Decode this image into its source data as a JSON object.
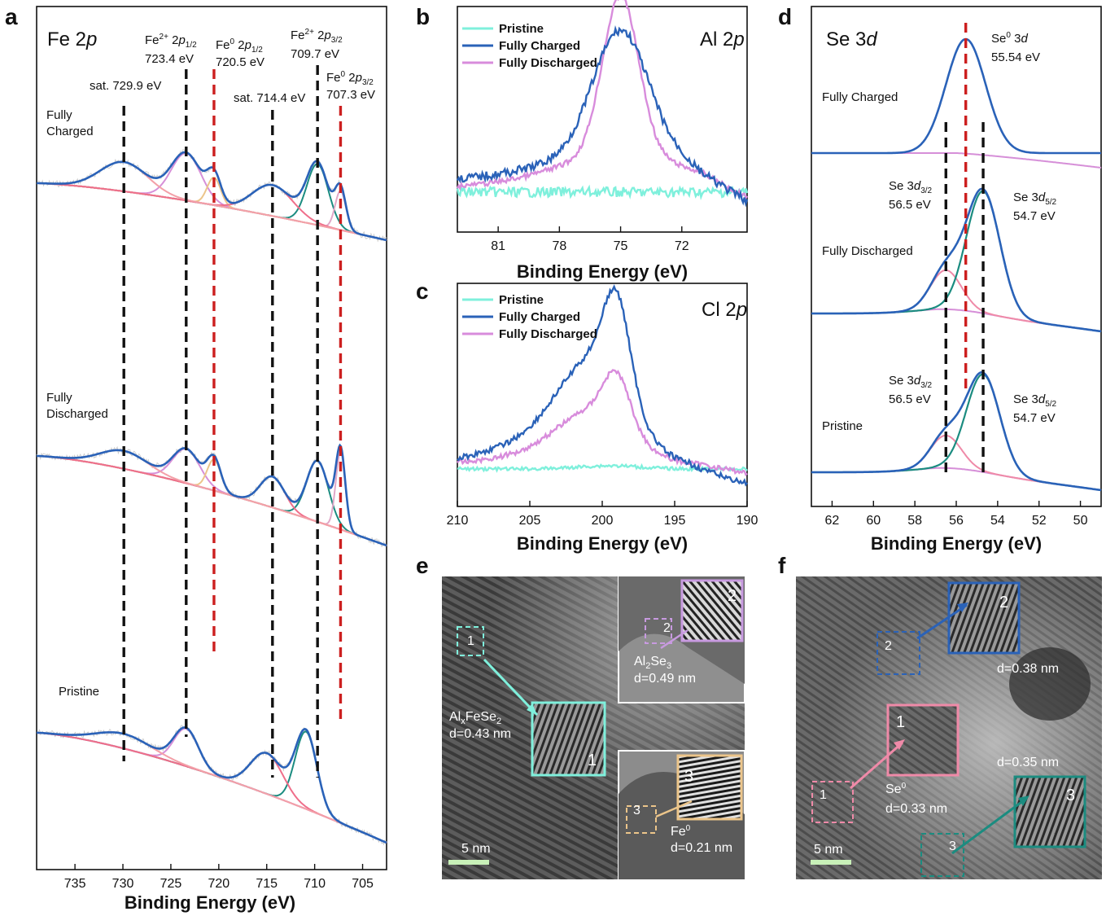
{
  "panel_labels": {
    "a": "a",
    "b": "b",
    "c": "c",
    "d": "d",
    "e": "e",
    "f": "f"
  },
  "colors": {
    "envelope": "#2a62b8",
    "fe2_32": "#1b8c80",
    "fe0": "#e0a8c8",
    "fe2_12": "#d68fd8",
    "sat": "#ef6e8a",
    "satb": "#f3a0a8",
    "fe0_12": "#ecc58a",
    "bg": "#e86a7a",
    "raw": "#c8c8c8",
    "red_dash": "#cc1f1f",
    "black_dash": "#111111",
    "pristine": "#7ff0dc",
    "charged": "#2a62b8",
    "discharged": "#d88cdc",
    "se_sum": "#2a62b8",
    "se52": "#1b8c80",
    "se32": "#ef8aa8",
    "se_bg": "#d68fd8",
    "tem_bg": "#7a7a7a",
    "box_cyan": "#7ff0dc",
    "box_purple": "#c89ae0",
    "box_orange": "#ecc58a",
    "box_blue": "#2a62b8",
    "box_pink": "#ef8aa8",
    "box_teal": "#1b8c80",
    "scalebar": "#c8f0b8"
  },
  "chart_data": [
    {
      "id": "a",
      "type": "line",
      "title": "Fe 2p",
      "xlabel": "Binding Energy (eV)",
      "xlim": [
        739,
        702.5
      ],
      "xticks": [
        735,
        730,
        725,
        720,
        715,
        710,
        705
      ],
      "spectra": [
        "Fully Charged",
        "Fully Discharged",
        "Pristine"
      ],
      "peak_markers": [
        {
          "x": 729.9,
          "style": "black",
          "label_lines": [
            "sat. 729.9 eV"
          ]
        },
        {
          "x": 723.4,
          "style": "black",
          "label_lines": [
            "Fe²⁺ 2p1/2",
            "723.4 eV"
          ]
        },
        {
          "x": 720.5,
          "style": "red",
          "label_lines": [
            "Fe⁰ 2p1/2",
            "720.5 eV"
          ]
        },
        {
          "x": 714.4,
          "style": "black",
          "label_lines": [
            "sat. 714.4 eV"
          ]
        },
        {
          "x": 709.7,
          "style": "black",
          "label_lines": [
            "Fe²⁺ 2p3/2",
            "709.7 eV"
          ]
        },
        {
          "x": 707.3,
          "style": "red",
          "label_lines": [
            "Fe⁰ 2p3/2",
            "707.3 eV"
          ]
        }
      ],
      "fit_components": [
        {
          "name": "Fe2+ 2p3/2",
          "center": 709.7
        },
        {
          "name": "Fe2+ 2p1/2",
          "center": 723.4
        },
        {
          "name": "Fe0 2p3/2",
          "center": 707.3
        },
        {
          "name": "Fe0 2p1/2",
          "center": 720.5
        },
        {
          "name": "sat.",
          "center": 714.4
        },
        {
          "name": "sat.",
          "center": 729.9
        }
      ]
    },
    {
      "id": "b",
      "type": "line",
      "title": "Al 2p",
      "xlabel": "Binding Energy (eV)",
      "xlim": [
        83,
        68.8
      ],
      "xticks": [
        81,
        78,
        75,
        72
      ],
      "series": [
        {
          "name": "Pristine",
          "peak": 75.0
        },
        {
          "name": "Fully Charged",
          "peak": 75.0
        },
        {
          "name": "Fully Discharged",
          "peak": 75.0
        }
      ]
    },
    {
      "id": "c",
      "type": "line",
      "title": "Cl 2p",
      "xlabel": "Binding Energy (eV)",
      "xlim": [
        210,
        190
      ],
      "xticks": [
        210,
        205,
        200,
        195,
        190
      ],
      "series": [
        {
          "name": "Pristine",
          "peak": 199.0
        },
        {
          "name": "Fully Charged",
          "peak": 199.0
        },
        {
          "name": "Fully Discharged",
          "peak": 199.0
        }
      ]
    },
    {
      "id": "d",
      "type": "line",
      "title": "Se 3d",
      "xlabel": "Binding Energy (eV)",
      "xlim": [
        63,
        49
      ],
      "xticks": [
        62,
        60,
        58,
        56,
        54,
        52,
        50
      ],
      "spectra": [
        "Fully Charged",
        "Fully Discharged",
        "Pristine"
      ],
      "peaks": [
        {
          "name": "Se⁰ 3d",
          "x": 55.54
        },
        {
          "name": "Se 3d3/2",
          "x": 56.5
        },
        {
          "name": "Se 3d5/2",
          "x": 54.7
        }
      ]
    }
  ],
  "a_text": {
    "title_main": "Fe 2",
    "title_ital": "p",
    "spectrum_labels": [
      "Fully",
      "Charged",
      "Fully",
      "Discharged",
      "Pristine"
    ],
    "xlabel": "Binding Energy (eV)",
    "ticks": [
      "735",
      "730",
      "725",
      "720",
      "715",
      "710",
      "705"
    ],
    "m1": "sat. 729.9 eV",
    "m2a": "Fe",
    "m2b": "2+",
    "m2c": " 2",
    "m2d": "p",
    "m2e": "1/2",
    "m2f": "723.4 eV",
    "m3a": "Fe",
    "m3b": "0",
    "m3c": " 2",
    "m3d": "p",
    "m3e": "1/2",
    "m3f": "720.5 eV",
    "m4": "sat. 714.4 eV",
    "m5a": "Fe",
    "m5b": "2+",
    "m5c": " 2",
    "m5d": "p",
    "m5e": "3/2",
    "m5f": "709.7 eV",
    "m6a": "Fe",
    "m6b": "0",
    "m6c": " 2",
    "m6d": "p",
    "m6e": "3/2",
    "m6f": "707.3 eV"
  },
  "b_text": {
    "title_main": "Al 2",
    "title_ital": "p",
    "legend": [
      "Pristine",
      "Fully Charged",
      "Fully Discharged"
    ],
    "ticks": [
      "81",
      "78",
      "75",
      "72"
    ],
    "xlabel": "Binding Energy (eV)"
  },
  "c_text": {
    "title_main": "Cl 2",
    "title_ital": "p",
    "legend": [
      "Pristine",
      "Fully Charged",
      "Fully Discharged"
    ],
    "ticks": [
      "210",
      "205",
      "200",
      "195",
      "190"
    ],
    "xlabel": "Binding Energy (eV)"
  },
  "d_text": {
    "title_main": "Se 3",
    "title_ital": "d",
    "spectrum_labels": [
      "Fully Charged",
      "Fully Discharged",
      "Pristine"
    ],
    "se0a": "Se",
    "se0b": "0",
    "se0c": " 3",
    "se0d": "d",
    "se0e": "55.54 eV",
    "s32a": "Se 3",
    "s32b": "d",
    "s32c": "3/2",
    "s32d": "56.5 eV",
    "s52a": "Se 3",
    "s52b": "d",
    "s52c": "5/2",
    "s52d": "54.7 eV",
    "ticks": [
      "62",
      "60",
      "58",
      "56",
      "54",
      "52",
      "50"
    ],
    "xlabel": "Binding Energy (eV)"
  },
  "e_text": {
    "box1": "1",
    "box2": "2",
    "box3": "3",
    "feSe_a": "Al",
    "feSe_b": "x",
    "feSe_c": "FeSe",
    "feSe_d": "2",
    "feSe_dspace": "d=0.43 nm",
    "alse_a": "Al",
    "alse_b": "2",
    "alse_c": "Se",
    "alse_d": "3",
    "alse_dspace": "d=0.49 nm",
    "fe0_a": "Fe",
    "fe0_b": "0",
    "fe0_dspace": "d=0.21 nm",
    "scale": "5 nm"
  },
  "f_text": {
    "box1": "1",
    "box2": "2",
    "box3": "3",
    "d038": "d=0.38 nm",
    "d035": "d=0.35 nm",
    "se0a": "Se",
    "se0b": "0",
    "d033": "d=0.33 nm",
    "scale": "5 nm"
  }
}
